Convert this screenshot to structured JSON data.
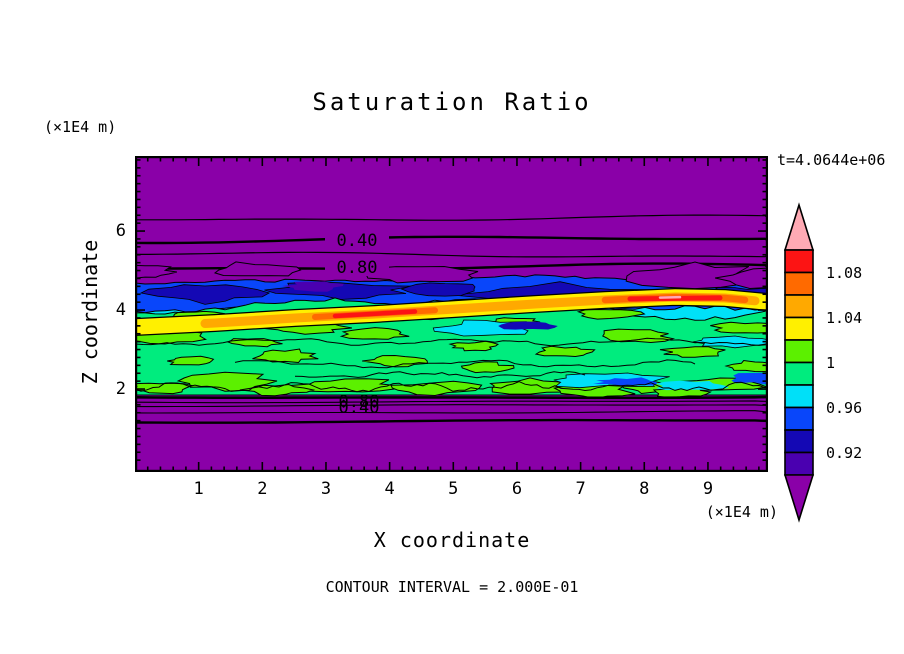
{
  "title": "Saturation Ratio",
  "time_label": "t=4.0644e+06",
  "footer": "CONTOUR INTERVAL = 2.000E-01",
  "axes": {
    "x": {
      "title": "X coordinate",
      "unit": "(×1E4 m)",
      "major_ticks": [
        "1",
        "2",
        "3",
        "4",
        "5",
        "6",
        "7",
        "8",
        "9"
      ],
      "major_values": [
        1,
        2,
        3,
        4,
        5,
        6,
        7,
        8,
        9
      ],
      "minor_step": 0.2,
      "range": [
        0,
        9.94
      ]
    },
    "z": {
      "title": "Z coordinate",
      "unit": "(×1E4 m)",
      "major_ticks": [
        "2",
        "4",
        "6"
      ],
      "major_values": [
        2,
        4,
        6
      ],
      "minor_step": 0.2,
      "range": [
        -0.1,
        7.9
      ]
    }
  },
  "colorbar": {
    "colors_top_to_bottom": [
      "#FC1414",
      "#FF6A00",
      "#FFA900",
      "#FFF000",
      "#5CF000",
      "#00EC7E",
      "#00E0F8",
      "#0946FA",
      "#1408B4",
      "#4A00B0"
    ],
    "over_arrow_color": "#FFAAB4",
    "under_arrow_color": "#8A00A8",
    "labels": [
      {
        "text": "1.08",
        "boundary_index": 1
      },
      {
        "text": "1.04",
        "boundary_index": 3
      },
      {
        "text": "1",
        "boundary_index": 5
      },
      {
        "text": "0.96",
        "boundary_index": 7
      },
      {
        "text": "0.92",
        "boundary_index": 9
      }
    ]
  },
  "plot": {
    "background_color": "#8A00A8",
    "line_color": "#000000",
    "contour_line_labels": {
      "top": [
        {
          "text": "0.40"
        },
        {
          "text": "0.80"
        }
      ],
      "bottom": [
        {
          "text": "0.80"
        },
        {
          "text": "0.40"
        }
      ]
    }
  },
  "chart_data": {
    "type": "heatmap",
    "subtype": "filled-contour",
    "title": "Saturation Ratio",
    "xlabel": "X coordinate",
    "ylabel": "Z coordinate",
    "x_unit": "(×1E4 m)",
    "z_unit": "(×1E4 m)",
    "time_annotation": "t=4.0644e+06",
    "contour_interval": 0.2,
    "x_range": [
      0,
      9.94
    ],
    "z_range": [
      -0.1,
      7.9
    ],
    "x_major_ticks": [
      1,
      2,
      3,
      4,
      5,
      6,
      7,
      8,
      9
    ],
    "z_major_ticks": [
      2,
      4,
      6
    ],
    "minor_tick_step": 0.2,
    "fill_levels": [
      0.9,
      0.92,
      0.94,
      0.96,
      0.98,
      1.0,
      1.02,
      1.04,
      1.06,
      1.08,
      1.1
    ],
    "fill_colors_low_to_high": [
      "#8A00A8",
      "#4A00B0",
      "#1408B4",
      "#0946FA",
      "#00E0F8",
      "#00EC7E",
      "#5CF000",
      "#FFF000",
      "#FFA900",
      "#FF6A00",
      "#FC1414",
      "#FFAAB4"
    ],
    "colorbar_tick_labels": [
      "1.08",
      "1.04",
      "1",
      "0.96",
      "0.92"
    ],
    "labeled_line_contours": [
      {
        "value": 0.4,
        "location": "upper background, z≈6.0, label near x≈3.4"
      },
      {
        "value": 0.8,
        "location": "upper background, z≈5.4, label near x≈3.4"
      },
      {
        "value": 0.8,
        "location": "lower background, z≈1.95, label near x≈3.5 (overlapping)"
      },
      {
        "value": 0.4,
        "location": "lower background, z≈1.8, label near x≈3.5 (overlapping)"
      }
    ],
    "field_description": [
      {
        "region": "z > ~4.8",
        "value": "subsaturated purple background (<0.9) with smooth line contours at 0.40 and 0.80"
      },
      {
        "region": "2.0 < z < 4.8",
        "value": "turbulent cloud band, saturation ratio ≈0.90–1.10, dominated by ≈1.0 greens with cyan/blue (0.92–0.98) pockets"
      },
      {
        "region": "z ≈ 4",
        "value": "elongated supersaturated streak ≈1.04–1.10 (yellow/orange/red) spanning nearly all x, rising slightly left to right"
      },
      {
        "region": "z < ~1.9",
        "value": "subsaturated purple background (<0.9) with tight line contours 0.80/0.40 just below the band"
      }
    ],
    "legend_position": "right colorbar with over/under arrow caps",
    "grid": false
  }
}
